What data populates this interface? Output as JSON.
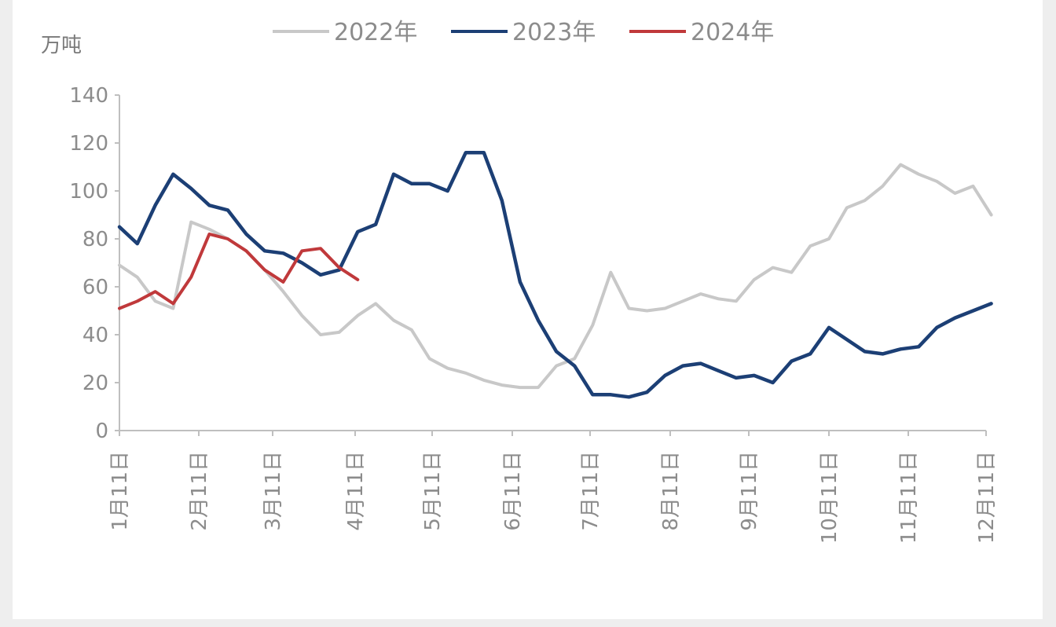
{
  "chart_data": {
    "type": "line",
    "unit_label": "万吨",
    "x_tick_labels": [
      "1月11日",
      "2月11日",
      "3月11日",
      "4月11日",
      "5月11日",
      "6月11日",
      "7月11日",
      "8月11日",
      "9月11日",
      "10月11日",
      "11月11日",
      "12月11日"
    ],
    "ylim": [
      0,
      140
    ],
    "y_ticks": [
      0,
      20,
      40,
      60,
      80,
      100,
      120,
      140
    ],
    "grid": false,
    "legend_position": "top-center",
    "series": [
      {
        "name": "2022年",
        "color": "#c8c8c8",
        "x": [
          "1月11日",
          "1月18日",
          "1月25日",
          "2月1日",
          "2月8日",
          "2月15日",
          "2月22日",
          "3月1日",
          "3月8日",
          "3月15日",
          "3月22日",
          "3月29日",
          "4月5日",
          "4月12日",
          "4月19日",
          "4月26日",
          "5月3日",
          "5月10日",
          "5月17日",
          "5月24日",
          "5月31日",
          "6月7日",
          "6月14日",
          "6月21日",
          "6月28日",
          "7月5日",
          "7月12日",
          "7月19日",
          "7月26日",
          "8月2日",
          "8月9日",
          "8月16日",
          "8月23日",
          "8月30日",
          "9月6日",
          "9月13日",
          "9月20日",
          "9月27日",
          "10月4日",
          "10月11日",
          "10月18日",
          "10月25日",
          "11月1日",
          "11月8日",
          "11月15日",
          "11月22日",
          "11月29日",
          "12月6日",
          "12月13日"
        ],
        "values": [
          69,
          64,
          54,
          51,
          87,
          84,
          80,
          75,
          67,
          58,
          48,
          40,
          41,
          48,
          53,
          46,
          42,
          30,
          26,
          24,
          21,
          19,
          18,
          18,
          27,
          30,
          44,
          66,
          51,
          50,
          51,
          54,
          57,
          55,
          54,
          63,
          68,
          66,
          77,
          80,
          93,
          96,
          102,
          111,
          107,
          104,
          99,
          102,
          90
        ]
      },
      {
        "name": "2023年",
        "color": "#1c3f75",
        "x": [
          "1月11日",
          "1月18日",
          "1月25日",
          "2月1日",
          "2月8日",
          "2月15日",
          "2月22日",
          "3月1日",
          "3月8日",
          "3月15日",
          "3月22日",
          "3月29日",
          "4月5日",
          "4月12日",
          "4月19日",
          "4月26日",
          "5月3日",
          "5月10日",
          "5月17日",
          "5月24日",
          "5月31日",
          "6月7日",
          "6月14日",
          "6月21日",
          "6月28日",
          "7月5日",
          "7月12日",
          "7月19日",
          "7月26日",
          "8月2日",
          "8月9日",
          "8月16日",
          "8月23日",
          "8月30日",
          "9月6日",
          "9月13日",
          "9月20日",
          "9月27日",
          "10月4日",
          "10月11日",
          "10月18日",
          "10月25日",
          "11月1日",
          "11月8日",
          "11月15日",
          "11月22日",
          "11月29日",
          "12月6日",
          "12月13日"
        ],
        "values": [
          85,
          78,
          94,
          107,
          101,
          94,
          92,
          82,
          75,
          74,
          70,
          65,
          67,
          83,
          86,
          107,
          103,
          103,
          100,
          116,
          116,
          96,
          62,
          46,
          33,
          27,
          15,
          15,
          14,
          16,
          23,
          27,
          28,
          25,
          22,
          23,
          20,
          29,
          32,
          43,
          38,
          33,
          32,
          34,
          35,
          43,
          47,
          50,
          53
        ]
      },
      {
        "name": "2024年",
        "color": "#c0393b",
        "x": [
          "1月11日",
          "1月18日",
          "1月25日",
          "2月1日",
          "2月8日",
          "2月15日",
          "2月22日",
          "3月1日",
          "3月8日",
          "3月15日",
          "3月22日",
          "3月29日",
          "4月5日",
          "4月12日"
        ],
        "values": [
          51,
          54,
          58,
          53,
          64,
          82,
          80,
          75,
          67,
          62,
          75,
          76,
          68,
          63
        ]
      }
    ]
  }
}
